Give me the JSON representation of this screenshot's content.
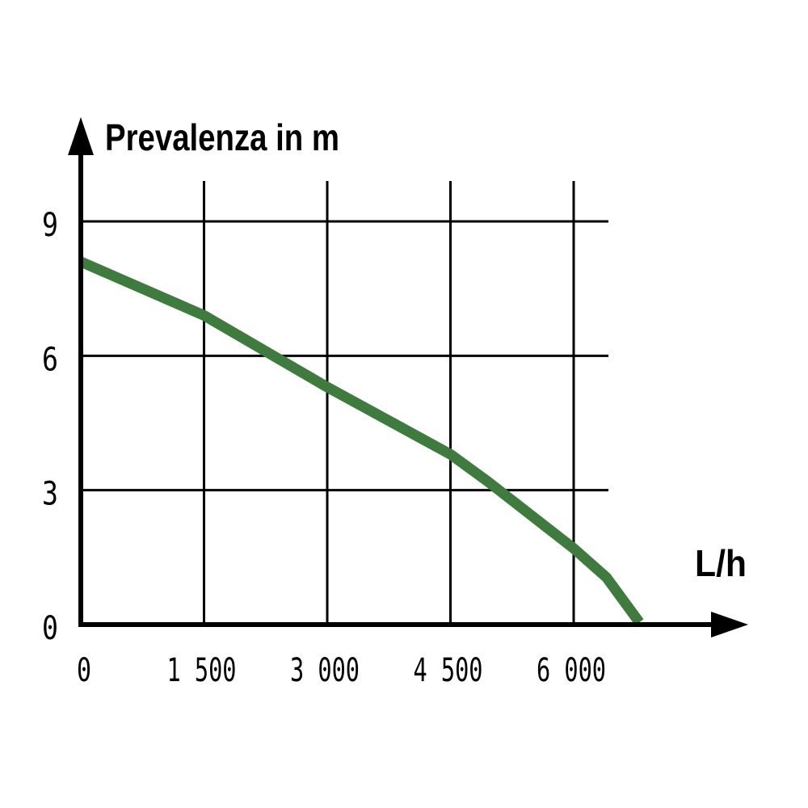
{
  "chart_data": {
    "type": "line",
    "title": "",
    "ylabel": "Prevalenza in m",
    "xlabel": "L/h",
    "x_ticks": [
      0,
      1500,
      3000,
      4500,
      6000
    ],
    "x_tick_labels": [
      "0",
      "1 500",
      "3 000",
      "4 500",
      "6 000"
    ],
    "y_ticks": [
      0,
      3,
      6,
      9
    ],
    "y_tick_labels": [
      "0",
      "3",
      "6",
      "9"
    ],
    "xlim": [
      0,
      6400
    ],
    "ylim": [
      0,
      9.9
    ],
    "grid": true,
    "colors": {
      "series": "#3f7a3f",
      "axis": "#000000",
      "grid": "#000000"
    },
    "series": [
      {
        "x": [
          0,
          1500,
          3000,
          4500,
          4950,
          6000,
          6400,
          6800
        ],
        "y": [
          8.1,
          6.9,
          5.3,
          3.8,
          3.2,
          1.7,
          1.05,
          0.05
        ]
      }
    ]
  }
}
